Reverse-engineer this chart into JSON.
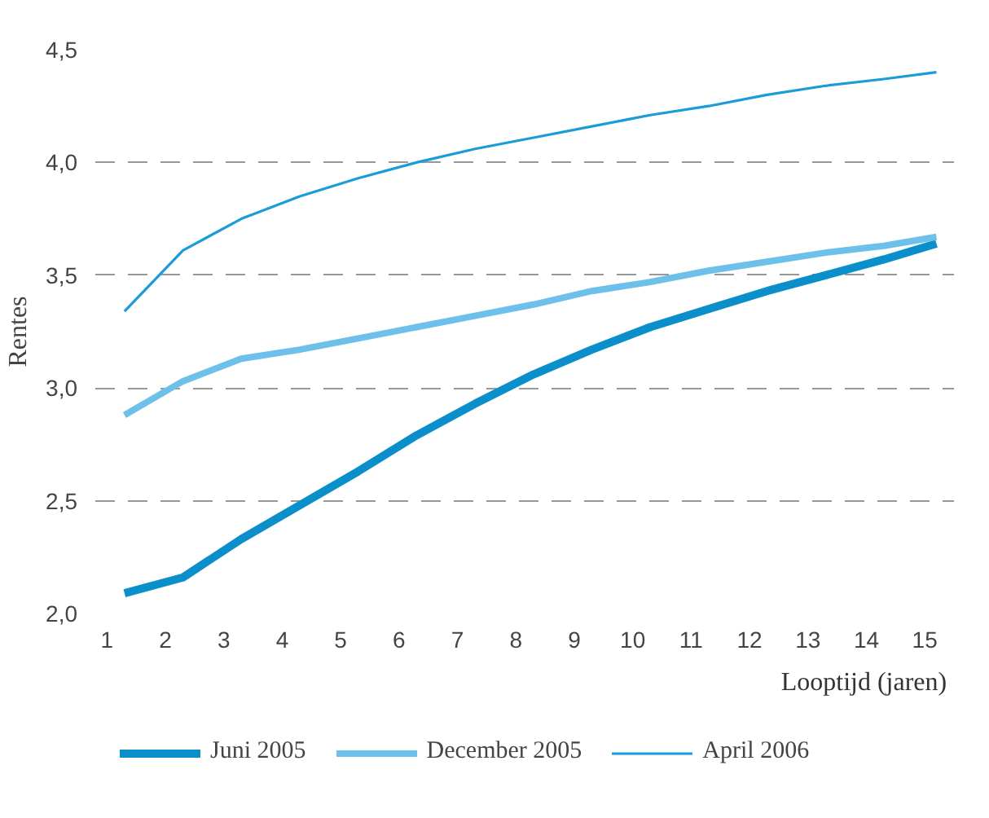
{
  "chart_data": {
    "type": "line",
    "xlabel": "Looptijd (jaren)",
    "ylabel": "Rentes",
    "x": [
      1.3,
      2.3,
      3.3,
      4.3,
      5.3,
      6.3,
      7.3,
      8.3,
      9.3,
      10.3,
      11.3,
      12.3,
      13.3,
      14.3,
      15.2
    ],
    "series": [
      {
        "name": "Juni 2005",
        "color": "#0a8fcb",
        "values": [
          2.09,
          2.16,
          2.33,
          2.48,
          2.63,
          2.79,
          2.93,
          3.06,
          3.17,
          3.27,
          3.35,
          3.43,
          3.5,
          3.57,
          3.64
        ]
      },
      {
        "name": "December 2005",
        "color": "#6cc0ea",
        "values": [
          2.88,
          3.03,
          3.13,
          3.17,
          3.22,
          3.27,
          3.32,
          3.37,
          3.43,
          3.47,
          3.52,
          3.56,
          3.6,
          3.63,
          3.67
        ]
      },
      {
        "name": "April 2006",
        "color": "#1a9cd8",
        "values": [
          3.34,
          3.61,
          3.75,
          3.85,
          3.93,
          4.0,
          4.06,
          4.11,
          4.16,
          4.21,
          4.25,
          4.3,
          4.34,
          4.37,
          4.4
        ]
      }
    ],
    "xlim": [
      0.8,
      15.5
    ],
    "ylim": [
      2.0,
      4.5
    ],
    "xticks": [
      1,
      2,
      3,
      4,
      5,
      6,
      7,
      8,
      9,
      10,
      11,
      12,
      13,
      14,
      15
    ],
    "yticks": [
      {
        "value": 2,
        "label": "2,0"
      },
      {
        "value": 2.5,
        "label": "2,5"
      },
      {
        "value": 3,
        "label": "3,0"
      },
      {
        "value": 3.5,
        "label": "3,5"
      },
      {
        "value": 4,
        "label": "4,0"
      },
      {
        "value": 4.5,
        "label": "4,5"
      }
    ],
    "grid": "y",
    "legend": "bottom",
    "marker": "none",
    "line_style": "solid"
  }
}
